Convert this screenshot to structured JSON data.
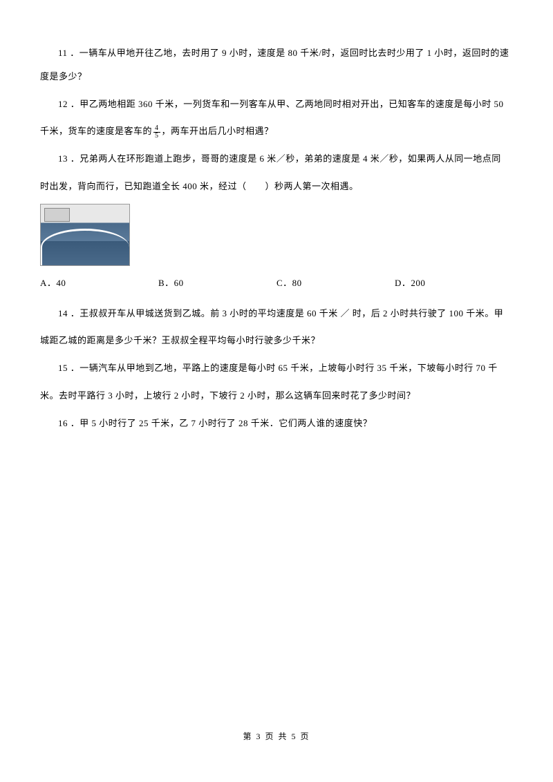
{
  "questions": {
    "q11": {
      "number": "11",
      "text": "一辆车从甲地开往乙地，去时用了 9 小时，速度是 80 千米/时，返回时比去时少用了 1 小时，返回时的速度是多少？"
    },
    "q12": {
      "number": "12",
      "line1": "甲乙两地相距 360 千米，一列货车和一列客车从甲、乙两地同时相对开出，已知客车的速度是每小时 50",
      "line2_before": "千米，货车的速度是客车的",
      "fraction_num": "4",
      "fraction_den": "5",
      "line2_after": "，两车开出后几小时相遇？"
    },
    "q13": {
      "number": "13",
      "line1": "兄弟两人在环形跑道上跑步，哥哥的速度是 6 米／秒，弟弟的速度是 4 米／秒，如果两人从同一地点同",
      "line2": "时出发，背向而行，已知跑道全长 400 米，经过（　　）秒两人第一次相遇。",
      "options": {
        "a": "A．40",
        "b": "B．60",
        "c": "C．80",
        "d": "D．200"
      }
    },
    "q14": {
      "number": "14",
      "line1": "王叔叔开车从甲城送货到乙城。前 3 小时的平均速度是 60 千米 ／ 时，后 2 小时共行驶了 100 千米。甲",
      "line2": "城距乙城的距离是多少千米？王叔叔全程平均每小时行驶多少千米？"
    },
    "q15": {
      "number": "15",
      "line1": "一辆汽车从甲地到乙地，平路上的速度是每小时 65 千米，上坡每小时行 35 千米，下坡每小时行 70 千",
      "line2": "米。去时平路行 3 小时，上坡行 2 小时，下坡行 2 小时，那么这辆车回来时花了多少时间？"
    },
    "q16": {
      "number": "16",
      "text": "甲 5 小时行了 25 千米，乙 7 小时行了 28 千米．它们两人谁的速度快？"
    }
  },
  "footer": {
    "text": "第 3 页 共 5 页"
  }
}
